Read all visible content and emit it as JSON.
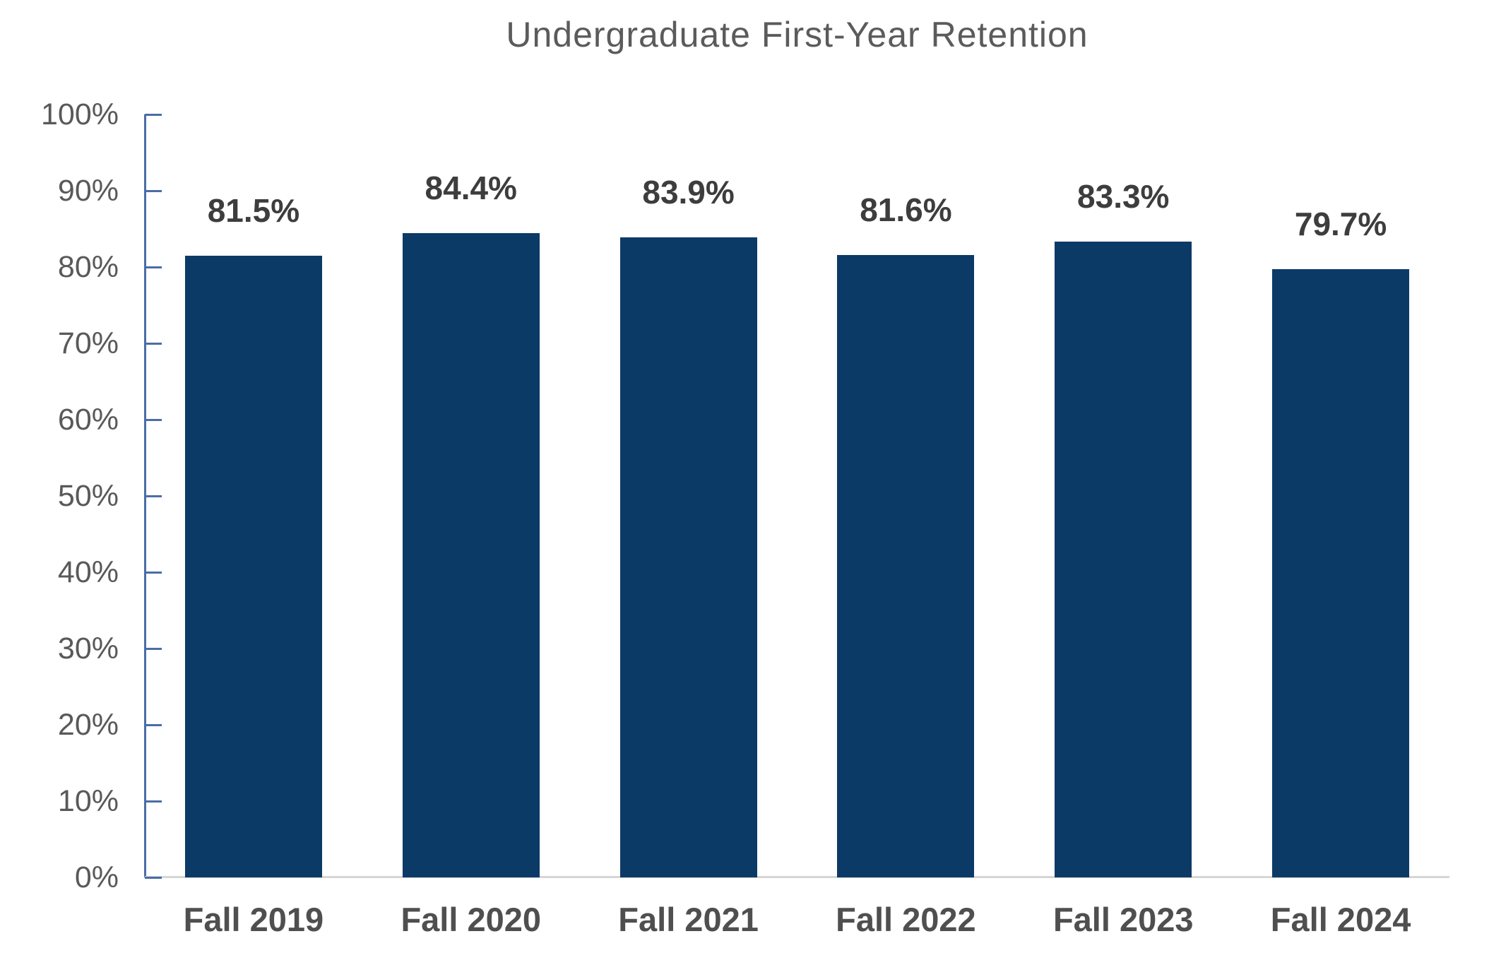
{
  "chart_data": {
    "type": "bar",
    "title": "Undergraduate First-Year Retention",
    "categories": [
      "Fall 2019",
      "Fall 2020",
      "Fall 2021",
      "Fall 2022",
      "Fall 2023",
      "Fall 2024"
    ],
    "values": [
      81.5,
      84.4,
      83.9,
      81.6,
      83.3,
      79.7
    ],
    "data_labels": [
      "81.5%",
      "84.4%",
      "83.9%",
      "81.6%",
      "83.3%",
      "79.7%"
    ],
    "y_ticks": [
      "0%",
      "10%",
      "20%",
      "30%",
      "40%",
      "50%",
      "60%",
      "70%",
      "80%",
      "90%",
      "100%"
    ],
    "ylim": [
      0,
      100
    ],
    "xlabel": "",
    "ylabel": "",
    "grid": "off",
    "legend": "none",
    "colors": {
      "bar": "#0b3a67",
      "axis": "#4a6da6",
      "baseline": "#d6d6d6",
      "title": "#5b5b5b",
      "tick_label": "#595959",
      "data_label": "#3d3d3d",
      "category_label": "#4f4f4f"
    }
  }
}
